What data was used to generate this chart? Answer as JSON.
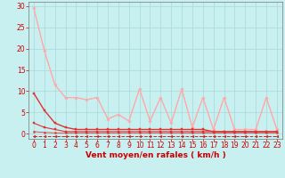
{
  "background_color": "#c8f0f0",
  "grid_color": "#a8d8d8",
  "xlabel": "Vent moyen/en rafales ( km/h )",
  "xlabel_color": "#cc0000",
  "xlabel_fontsize": 6.5,
  "tick_color": "#cc0000",
  "tick_fontsize": 5.5,
  "xlim": [
    -0.5,
    23.5
  ],
  "ylim": [
    -1.2,
    31
  ],
  "yticks": [
    0,
    5,
    10,
    15,
    20,
    25,
    30
  ],
  "xticks": [
    0,
    1,
    2,
    3,
    4,
    5,
    6,
    7,
    8,
    9,
    10,
    11,
    12,
    13,
    14,
    15,
    16,
    17,
    18,
    19,
    20,
    21,
    22,
    23
  ],
  "series": [
    {
      "color": "#ffaaaa",
      "linewidth": 0.8,
      "marker": "D",
      "markersize": 1.8,
      "linestyle": "-",
      "values": [
        29.5,
        19.5,
        11.5,
        8.5,
        8.5,
        8.0,
        8.5,
        3.5,
        4.5,
        3.0,
        10.5,
        3.0,
        8.5,
        2.5,
        10.5,
        1.5,
        8.5,
        1.0,
        8.5,
        1.0,
        1.0,
        1.0,
        8.5,
        1.0
      ]
    },
    {
      "color": "#ffaaaa",
      "linewidth": 0.8,
      "marker": null,
      "markersize": 0,
      "linestyle": "-",
      "values": [
        29.5,
        19.5,
        11.5,
        8.5,
        8.5,
        8.0,
        8.5,
        3.5,
        4.5,
        3.0,
        10.5,
        3.0,
        8.5,
        2.5,
        10.5,
        1.5,
        8.5,
        1.0,
        8.5,
        1.0,
        1.0,
        1.0,
        8.5,
        1.0
      ]
    },
    {
      "color": "#dd3333",
      "linewidth": 1.0,
      "marker": "s",
      "markersize": 2,
      "linestyle": "-",
      "values": [
        9.5,
        5.5,
        2.5,
        1.5,
        1.0,
        1.0,
        1.0,
        1.0,
        1.0,
        1.0,
        1.0,
        1.0,
        1.0,
        1.0,
        1.0,
        1.0,
        1.0,
        0.5,
        0.5,
        0.5,
        0.5,
        0.5,
        0.5,
        0.5
      ]
    },
    {
      "color": "#dd3333",
      "linewidth": 0.8,
      "marker": "s",
      "markersize": 1.5,
      "linestyle": "-",
      "values": [
        2.5,
        1.5,
        1.0,
        0.5,
        0.5,
        0.5,
        0.5,
        0.5,
        0.5,
        0.5,
        0.5,
        0.5,
        0.5,
        0.5,
        0.5,
        0.5,
        0.5,
        0.5,
        0.5,
        0.5,
        0.5,
        0.5,
        0.5,
        0.5
      ]
    },
    {
      "color": "#dd3333",
      "linewidth": 0.6,
      "marker": "s",
      "markersize": 1.2,
      "linestyle": "-",
      "values": [
        0.5,
        0.3,
        0.2,
        0.2,
        0.2,
        0.2,
        0.2,
        0.2,
        0.2,
        0.2,
        0.2,
        0.2,
        0.2,
        0.2,
        0.2,
        0.2,
        0.2,
        0.2,
        0.2,
        0.2,
        0.2,
        0.2,
        0.2,
        0.2
      ]
    },
    {
      "color": "#cc2222",
      "linewidth": 0.7,
      "marker": "<",
      "markersize": 2,
      "linestyle": "--",
      "values": [
        -0.6,
        -0.6,
        -0.6,
        -0.6,
        -0.6,
        -0.6,
        -0.6,
        -0.6,
        -0.6,
        -0.6,
        -0.6,
        -0.6,
        -0.6,
        -0.6,
        -0.6,
        -0.6,
        -0.6,
        -0.6,
        -0.6,
        -0.6,
        -0.6,
        -0.6,
        -0.6,
        -0.6
      ]
    }
  ]
}
